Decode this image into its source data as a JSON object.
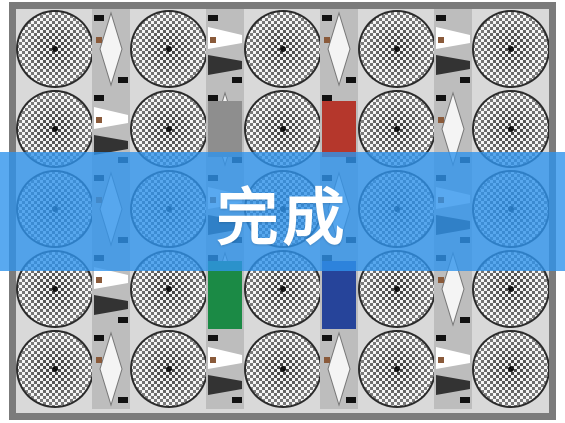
{
  "status_banner": {
    "text": "完成",
    "color": "#3094ec"
  },
  "test_chart": {
    "frame_color": "#7b7b7b",
    "patch_colors": {
      "red": "#b5372c",
      "green": "#1b8a45",
      "blue": "#26449a",
      "gray": "#8e8e8e"
    }
  }
}
